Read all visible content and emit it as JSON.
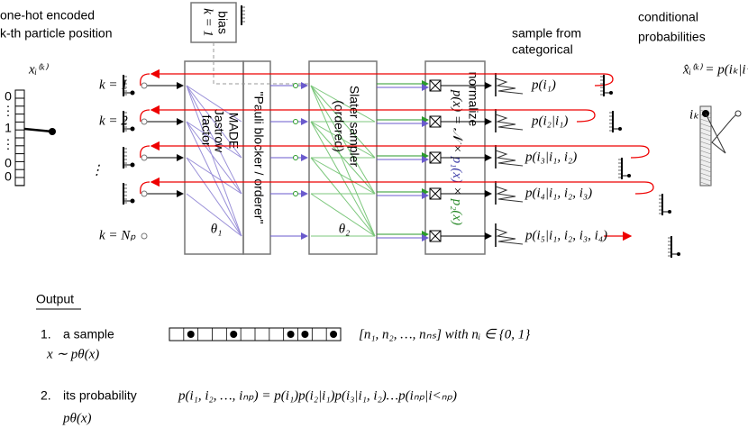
{
  "input": {
    "title": [
      "one-hot encoded",
      "k-th particle position"
    ],
    "symbol": "xᵢ⁽ᵏ⁾",
    "vector": [
      "0",
      "⋮",
      "1",
      "⋮",
      "0",
      "0"
    ]
  },
  "rows": [
    "k = 1",
    "k = 2",
    "⋮",
    "k = Nₚ"
  ],
  "bias": {
    "label": "bias",
    "k": "k = 1"
  },
  "made": {
    "title": "MADE",
    "subtitle": [
      "Jastrow",
      "factor"
    ],
    "param": "θ₁"
  },
  "pauli": "\"Pauli blocker / orderer\"",
  "slater": {
    "title": "Slater sampler",
    "subtitle": "(ordered)",
    "param": "θ₂"
  },
  "normalize": {
    "title": "normalize",
    "formula": [
      "p(x) = 𝒩 × ",
      "p₁(x)",
      " × ",
      "p₂(x)"
    ]
  },
  "sample_note": [
    "sample from",
    "categorical"
  ],
  "conditionals": [
    "p(i₁)",
    "p(i₂|i₁)",
    "p(i₃|i₁, i₂)",
    "p(i₄|i₁, i₂, i₃)",
    "p(i₅|i₁, i₂, i₃, i₄)"
  ],
  "conditional_header": [
    "conditional",
    "probabilities"
  ],
  "conditional_formula": "x̂ᵢ⁽ᵏ⁾ = p(iₖ|i<ₖ)",
  "ik_label": "iₖ",
  "output": {
    "heading": "Output",
    "items": [
      {
        "number": "1.",
        "label": "a sample",
        "math": "x ∼ pθ(x)",
        "detail": "[n₁, n₂, …, nₙₛ] with nᵢ ∈ {0, 1}"
      },
      {
        "number": "2.",
        "label": "its probability",
        "math": "pθ(x)",
        "detail": "p(i₁, i₂, …, iₙₚ) = p(i₁)p(i₂|i₁)p(i₃|i₁, i₂)…p(iₙₚ|i<ₙₚ)"
      }
    ]
  }
}
